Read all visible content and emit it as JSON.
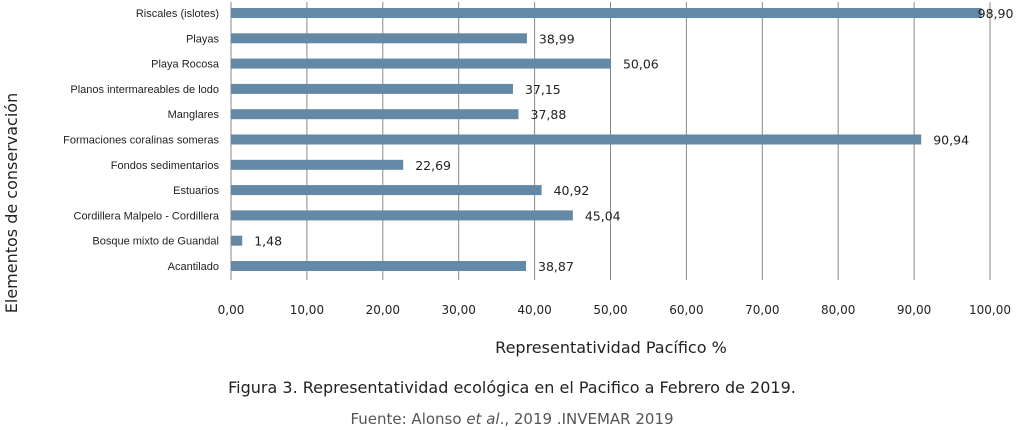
{
  "chart_data": {
    "type": "bar",
    "orientation": "horizontal",
    "categories": [
      "Riscales (islotes)",
      "Playas",
      "Playa Rocosa",
      "Planos intermareables de lodo",
      "Manglares",
      "Formaciones coralinas someras",
      "Fondos sedimentarios",
      "Estuarios",
      "Cordillera Malpelo - Cordillera",
      "Bosque mixto de Guandal",
      "Acantilado"
    ],
    "values": [
      98.9,
      38.99,
      50.06,
      37.15,
      37.88,
      90.94,
      22.69,
      40.92,
      45.04,
      1.48,
      38.87
    ],
    "value_labels": [
      "98,90",
      "38,99",
      "50,06",
      "37,15",
      "37,88",
      "90,94",
      "22,69",
      "40,92",
      "45,04",
      "1,48",
      "38,87"
    ],
    "xlim": [
      0,
      100
    ],
    "xticks": [
      0,
      10,
      20,
      30,
      40,
      50,
      60,
      70,
      80,
      90,
      100
    ],
    "xtick_labels": [
      "0,00",
      "10,00",
      "20,00",
      "30,00",
      "40,00",
      "50,00",
      "60,00",
      "70,00",
      "80,00",
      "90,00",
      "100,00"
    ],
    "xlabel": "Representatividad Pacífico %",
    "ylabel": "Elementos de conservación",
    "grid": "vertical",
    "legend": "none",
    "bar_color": "#6389a6",
    "grid_color": "#888888"
  },
  "caption": {
    "title": "Figura 3. Representatividad ecológica en el Pacifico a Febrero de 2019.",
    "source_prefix": "Fuente: Alonso ",
    "source_italic": "et al",
    "source_suffix": "., 2019 .INVEMAR 2019"
  }
}
